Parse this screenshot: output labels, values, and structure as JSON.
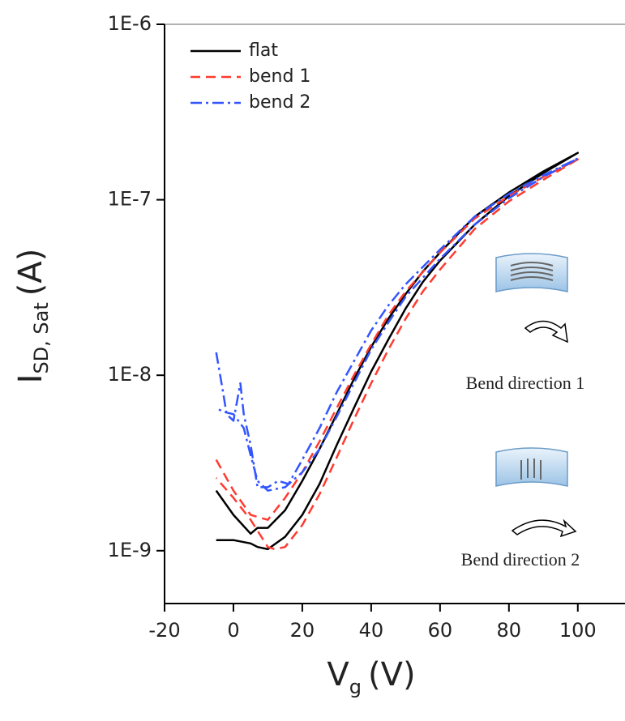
{
  "chart_data": {
    "type": "line",
    "xlabel": "V",
    "xlabel_sub": "g",
    "xlabel_unit": "(V)",
    "ylabel": "I",
    "ylabel_sub": "SD, Sat",
    "ylabel_unit": "(A)",
    "xlim": [
      -20,
      113
    ],
    "xticks": [
      -20,
      0,
      20,
      40,
      60,
      80,
      100
    ],
    "ylim": [
      5e-10,
      1e-06
    ],
    "yscale": "log",
    "yticks": [
      {
        "value": 1e-09,
        "label": "1E-9"
      },
      {
        "value": 1e-08,
        "label": "1E-8"
      },
      {
        "value": 1e-07,
        "label": "1E-7"
      },
      {
        "value": 1e-06,
        "label": "1E-6"
      }
    ],
    "legend": "upper left",
    "annotations": [
      "Bend direction 1",
      "Bend direction 2"
    ],
    "series": [
      {
        "name": "flat",
        "color": "#000000",
        "style": "solid",
        "x": [
          -5,
          0,
          5,
          7,
          10,
          15,
          20,
          25,
          30,
          35,
          40,
          45,
          50,
          55,
          60,
          70,
          80,
          90,
          100,
          90,
          80,
          70,
          60,
          55,
          50,
          45,
          40,
          35,
          30,
          25,
          20,
          15,
          10,
          7,
          5,
          0,
          -5
        ],
        "values": [
          2.2e-09,
          1.6e-09,
          1.25e-09,
          1.35e-09,
          1.35e-09,
          1.7e-09,
          2.5e-09,
          3.8e-09,
          6e-09,
          9.5e-09,
          1.45e-08,
          2.1e-08,
          2.9e-08,
          3.9e-08,
          5e-08,
          8e-08,
          1.1e-07,
          1.45e-07,
          1.85e-07,
          1.42e-07,
          1.05e-07,
          7.2e-08,
          4.5e-08,
          3.4e-08,
          2.4e-08,
          1.6e-08,
          1.05e-08,
          6.5e-09,
          4e-09,
          2.4e-09,
          1.6e-09,
          1.2e-09,
          1.02e-09,
          1.05e-09,
          1.1e-09,
          1.15e-09,
          1.15e-09
        ]
      },
      {
        "name": "bend 1",
        "color": "#ff3b30",
        "style": "dashed",
        "x": [
          -5,
          0,
          5,
          10,
          15,
          20,
          25,
          30,
          35,
          40,
          45,
          50,
          60,
          70,
          80,
          90,
          100,
          90,
          80,
          70,
          60,
          55,
          50,
          45,
          40,
          35,
          30,
          25,
          20,
          15,
          12,
          10,
          5,
          0,
          -5
        ],
        "values": [
          3.3e-09,
          2.2e-09,
          1.6e-09,
          1.5e-09,
          2e-09,
          2.8e-09,
          4.2e-09,
          6.5e-09,
          1e-08,
          1.5e-08,
          2.2e-08,
          3e-08,
          5e-08,
          7.8e-08,
          1.05e-07,
          1.35e-07,
          1.7e-07,
          1.3e-07,
          9.8e-08,
          6.8e-08,
          4e-08,
          3e-08,
          2.1e-08,
          1.4e-08,
          9e-09,
          5.6e-09,
          3.4e-09,
          2.1e-09,
          1.4e-09,
          1.05e-09,
          1.02e-09,
          1.05e-09,
          1.5e-09,
          2e-09,
          2.6e-09
        ]
      },
      {
        "name": "bend 2",
        "color": "#3355ff",
        "style": "dashdot",
        "x": [
          -5,
          -3,
          -2,
          0,
          2,
          3,
          5,
          7,
          10,
          13,
          16,
          20,
          25,
          30,
          35,
          40,
          45,
          50,
          60,
          70,
          80,
          90,
          100,
          90,
          80,
          70,
          60,
          50,
          45,
          40,
          35,
          30,
          25,
          20,
          15,
          10,
          7,
          5,
          3,
          0,
          -3,
          -5
        ],
        "values": [
          1.35e-08,
          8e-09,
          6e-09,
          5.5e-09,
          9e-09,
          6e-09,
          4e-09,
          2.3e-09,
          2.3e-09,
          2.5e-09,
          2.4e-09,
          3.3e-09,
          5e-09,
          8e-09,
          1.2e-08,
          1.8e-08,
          2.5e-08,
          3.3e-08,
          5.2e-08,
          8e-08,
          1.08e-07,
          1.38e-07,
          1.72e-07,
          1.35e-07,
          1.02e-07,
          7.2e-08,
          4.6e-08,
          2.8e-08,
          2e-08,
          1.4e-08,
          9e-09,
          5.8e-09,
          3.8e-09,
          2.8e-09,
          2.3e-09,
          2.2e-09,
          2.5e-09,
          3.5e-09,
          5e-09,
          6e-09,
          6.2e-09,
          6.5e-09
        ]
      }
    ]
  }
}
